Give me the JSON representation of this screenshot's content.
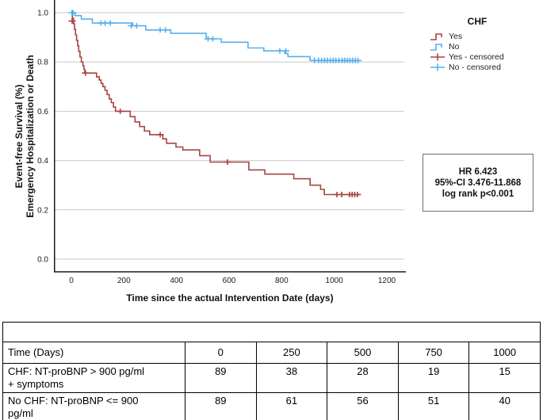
{
  "chart_data": {
    "type": "line",
    "subtype": "kaplan-meier-step",
    "title": "",
    "xlabel": "Time since the actual Intervention Date (days)",
    "ylabel_line1": "Event-free Survival (%)",
    "ylabel_line2": "Emergency Hospitalization or Death",
    "xlim": [
      0,
      1200
    ],
    "ylim": [
      0.0,
      1.0
    ],
    "xticks": [
      "0",
      "200",
      "400",
      "600",
      "800",
      "1000",
      "1200"
    ],
    "yticks": [
      "0.0",
      "0.2",
      "0.4",
      "0.6",
      "0.8",
      "1.0"
    ],
    "grid": "horizontal",
    "legend_position": "right",
    "axis_color": "#1a1a1a",
    "grid_color": "#c9c9c9",
    "series": [
      {
        "name": "Yes",
        "color": "#a8433f",
        "points": [
          [
            0,
            1.0
          ],
          [
            4,
            0.977
          ],
          [
            8,
            0.955
          ],
          [
            12,
            0.932
          ],
          [
            16,
            0.91
          ],
          [
            20,
            0.888
          ],
          [
            24,
            0.866
          ],
          [
            28,
            0.843
          ],
          [
            33,
            0.82
          ],
          [
            38,
            0.8
          ],
          [
            44,
            0.785
          ],
          [
            48,
            0.77
          ],
          [
            51,
            0.755
          ],
          [
            96,
            0.74
          ],
          [
            106,
            0.727
          ],
          [
            113,
            0.713
          ],
          [
            120,
            0.7
          ],
          [
            128,
            0.685
          ],
          [
            136,
            0.668
          ],
          [
            144,
            0.65
          ],
          [
            152,
            0.635
          ],
          [
            160,
            0.617
          ],
          [
            168,
            0.6
          ],
          [
            224,
            0.578
          ],
          [
            242,
            0.557
          ],
          [
            260,
            0.538
          ],
          [
            278,
            0.52
          ],
          [
            298,
            0.505
          ],
          [
            348,
            0.488
          ],
          [
            362,
            0.47
          ],
          [
            398,
            0.455
          ],
          [
            424,
            0.443
          ],
          [
            488,
            0.42
          ],
          [
            528,
            0.394
          ],
          [
            675,
            0.362
          ],
          [
            736,
            0.345
          ],
          [
            846,
            0.326
          ],
          [
            908,
            0.3
          ],
          [
            948,
            0.283
          ],
          [
            962,
            0.262
          ],
          [
            1097,
            0.262
          ]
        ],
        "censored": [
          [
            3,
            0.966
          ],
          [
            54,
            0.755
          ],
          [
            186,
            0.6
          ],
          [
            338,
            0.505
          ],
          [
            594,
            0.394
          ],
          [
            1010,
            0.262
          ],
          [
            1028,
            0.262
          ],
          [
            1058,
            0.262
          ],
          [
            1068,
            0.262
          ],
          [
            1078,
            0.262
          ],
          [
            1088,
            0.262
          ]
        ]
      },
      {
        "name": "No",
        "color": "#55b0f0",
        "points": [
          [
            0,
            1.0
          ],
          [
            14,
            0.988
          ],
          [
            38,
            0.974
          ],
          [
            80,
            0.958
          ],
          [
            233,
            0.947
          ],
          [
            283,
            0.93
          ],
          [
            378,
            0.916
          ],
          [
            513,
            0.894
          ],
          [
            570,
            0.88
          ],
          [
            672,
            0.857
          ],
          [
            732,
            0.845
          ],
          [
            812,
            0.834
          ],
          [
            824,
            0.822
          ],
          [
            908,
            0.806
          ],
          [
            1100,
            0.806
          ]
        ],
        "censored": [
          [
            2,
            1.0
          ],
          [
            7,
            1.0
          ],
          [
            113,
            0.958
          ],
          [
            128,
            0.958
          ],
          [
            148,
            0.958
          ],
          [
            228,
            0.947
          ],
          [
            248,
            0.947
          ],
          [
            338,
            0.93
          ],
          [
            358,
            0.93
          ],
          [
            520,
            0.894
          ],
          [
            538,
            0.894
          ],
          [
            793,
            0.845
          ],
          [
            816,
            0.845
          ],
          [
            925,
            0.806
          ],
          [
            940,
            0.806
          ],
          [
            952,
            0.806
          ],
          [
            963,
            0.806
          ],
          [
            974,
            0.806
          ],
          [
            985,
            0.806
          ],
          [
            996,
            0.806
          ],
          [
            1006,
            0.806
          ],
          [
            1018,
            0.806
          ],
          [
            1030,
            0.806
          ],
          [
            1040,
            0.806
          ],
          [
            1050,
            0.806
          ],
          [
            1060,
            0.806
          ],
          [
            1070,
            0.806
          ],
          [
            1080,
            0.806
          ],
          [
            1090,
            0.806
          ]
        ]
      }
    ]
  },
  "legend": {
    "title": "CHF",
    "items": [
      {
        "label": "Yes",
        "glyph": "step",
        "color": "#a8433f"
      },
      {
        "label": "No",
        "glyph": "step",
        "color": "#55b0f0"
      },
      {
        "label": "Yes - censored",
        "glyph": "plus",
        "color": "#a8433f"
      },
      {
        "label": "No - censored",
        "glyph": "plus",
        "color": "#55b0f0"
      }
    ]
  },
  "annotation": {
    "lines": [
      "HR 6.423",
      "95%-CI 3.476-11.868",
      "log rank p<0.001"
    ]
  },
  "table": {
    "time_label": "Time (Days)",
    "time_values": [
      "0",
      "250",
      "500",
      "750",
      "1000"
    ],
    "rows": [
      {
        "label_lines": [
          "CHF: NT-proBNP > 900 pg/ml",
          "+ symptoms"
        ],
        "values": [
          "89",
          "38",
          "28",
          "19",
          "15"
        ]
      },
      {
        "label_lines": [
          "No CHF: NT-proBNP <= 900",
          "pg/ml"
        ],
        "values": [
          "89",
          "61",
          "56",
          "51",
          "40"
        ]
      }
    ]
  }
}
